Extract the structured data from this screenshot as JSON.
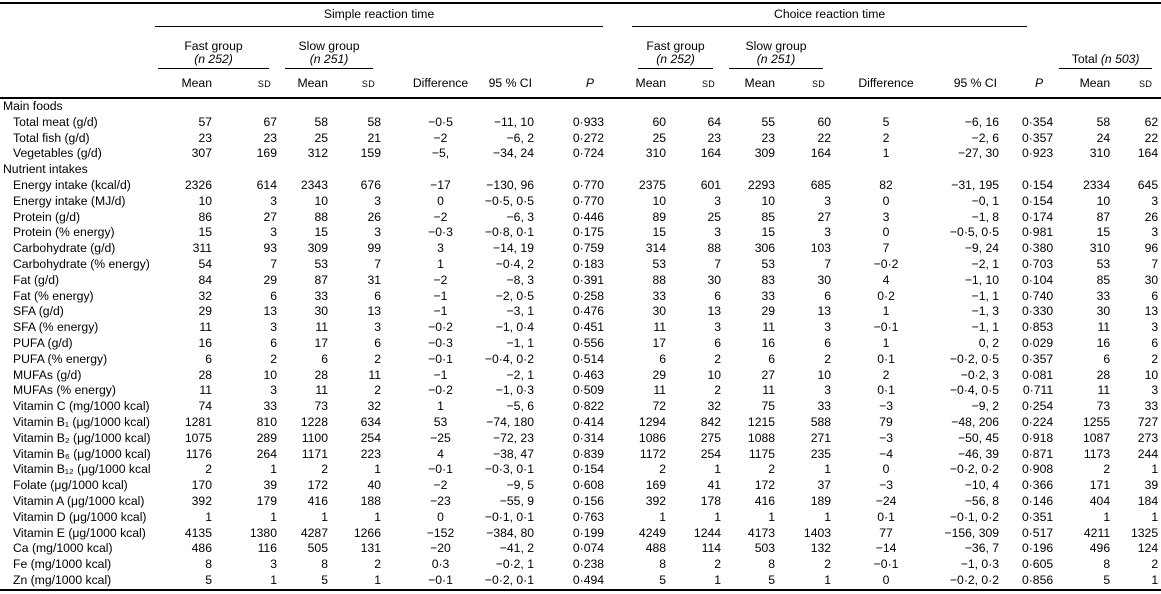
{
  "table": {
    "header": {
      "simple": {
        "title": "Simple reaction time",
        "fast": {
          "label": "Fast group",
          "n": "(n 252)"
        },
        "slow": {
          "label": "Slow group",
          "n": "(n 251)"
        }
      },
      "choice": {
        "title": "Choice reaction time",
        "fast": {
          "label": "Fast group",
          "n": "(n 252)"
        },
        "slow": {
          "label": "Slow group",
          "n": "(n 251)"
        }
      },
      "total": {
        "label": "Total",
        "n": "(n 503)"
      },
      "cols": {
        "mean": "Mean",
        "sd": "sd",
        "difference": "Difference",
        "ci": "95 % CI",
        "p": "P"
      }
    },
    "sections": [
      {
        "title": "Main foods",
        "rows": [
          {
            "label": "Total meat (g/d)",
            "s": [
              "57",
              "67",
              "58",
              "58",
              "−0·5",
              "−11, 10",
              "0·933"
            ],
            "c": [
              "60",
              "64",
              "55",
              "60",
              "5",
              "−6, 16",
              "0·354"
            ],
            "t": [
              "58",
              "62"
            ]
          },
          {
            "label": "Total fish (g/d)",
            "s": [
              "23",
              "23",
              "25",
              "21",
              "−2",
              "−6, 2",
              "0·272"
            ],
            "c": [
              "25",
              "23",
              "23",
              "22",
              "2",
              "−2, 6",
              "0·357"
            ],
            "t": [
              "24",
              "22"
            ]
          },
          {
            "label": "Vegetables (g/d)",
            "s": [
              "307",
              "169",
              "312",
              "159",
              "−5,",
              "−34, 24",
              "0·724"
            ],
            "c": [
              "310",
              "164",
              "309",
              "164",
              "1",
              "−27, 30",
              "0·923"
            ],
            "t": [
              "310",
              "164"
            ]
          }
        ]
      },
      {
        "title": "Nutrient intakes",
        "rows": [
          {
            "label": "Energy intake (kcal/d)",
            "s": [
              "2326",
              "614",
              "2343",
              "676",
              "−17",
              "−130, 96",
              "0·770"
            ],
            "c": [
              "2375",
              "601",
              "2293",
              "685",
              "82",
              "−31, 195",
              "0·154"
            ],
            "t": [
              "2334",
              "645"
            ]
          },
          {
            "label": "Energy intake (MJ/d)",
            "s": [
              "10",
              "3",
              "10",
              "3",
              "0",
              "−0·5, 0·5",
              "0·770"
            ],
            "c": [
              "10",
              "3",
              "10",
              "3",
              "0",
              "−0, 1",
              "0·154"
            ],
            "t": [
              "10",
              "3"
            ]
          },
          {
            "label": "Protein (g/d)",
            "s": [
              "86",
              "27",
              "88",
              "26",
              "−2",
              "−6, 3",
              "0·446"
            ],
            "c": [
              "89",
              "25",
              "85",
              "27",
              "3",
              "−1, 8",
              "0·174"
            ],
            "t": [
              "87",
              "26"
            ]
          },
          {
            "label": "Protein (% energy)",
            "s": [
              "15",
              "3",
              "15",
              "3",
              "−0·3",
              "−0·8, 0·1",
              "0·175"
            ],
            "c": [
              "15",
              "3",
              "15",
              "3",
              "0",
              "−0·5, 0·5",
              "0·981"
            ],
            "t": [
              "15",
              "3"
            ]
          },
          {
            "label": "Carbohydrate (g/d)",
            "s": [
              "311",
              "93",
              "309",
              "99",
              "3",
              "−14, 19",
              "0·759"
            ],
            "c": [
              "314",
              "88",
              "306",
              "103",
              "7",
              "−9, 24",
              "0·380"
            ],
            "t": [
              "310",
              "96"
            ]
          },
          {
            "label": "Carbohydrate (% energy)",
            "s": [
              "54",
              "7",
              "53",
              "7",
              "1",
              "−0·4, 2",
              "0·183"
            ],
            "c": [
              "53",
              "7",
              "53",
              "7",
              "−0·2",
              "−2, 1",
              "0·703"
            ],
            "t": [
              "53",
              "7"
            ]
          },
          {
            "label": "Fat (g/d)",
            "s": [
              "84",
              "29",
              "87",
              "31",
              "−2",
              "−8, 3",
              "0·391"
            ],
            "c": [
              "88",
              "30",
              "83",
              "30",
              "4",
              "−1, 10",
              "0·104"
            ],
            "t": [
              "85",
              "30"
            ]
          },
          {
            "label": "Fat (% energy)",
            "s": [
              "32",
              "6",
              "33",
              "6",
              "−1",
              "−2, 0·5",
              "0·258"
            ],
            "c": [
              "33",
              "6",
              "33",
              "6",
              "0·2",
              "−1, 1",
              "0·740"
            ],
            "t": [
              "33",
              "6"
            ]
          },
          {
            "label": "SFA (g/d)",
            "s": [
              "29",
              "13",
              "30",
              "13",
              "−1",
              "−3, 1",
              "0·476"
            ],
            "c": [
              "30",
              "13",
              "29",
              "13",
              "1",
              "−1, 3",
              "0·330"
            ],
            "t": [
              "30",
              "13"
            ]
          },
          {
            "label": "SFA (% energy)",
            "s": [
              "11",
              "3",
              "11",
              "3",
              "−0·2",
              "−1, 0·4",
              "0·451"
            ],
            "c": [
              "11",
              "3",
              "11",
              "3",
              "−0·1",
              "−1, 1",
              "0·853"
            ],
            "t": [
              "11",
              "3"
            ]
          },
          {
            "label": "PUFA (g/d)",
            "s": [
              "16",
              "6",
              "17",
              "6",
              "−0·3",
              "−1, 1",
              "0·556"
            ],
            "c": [
              "17",
              "6",
              "16",
              "6",
              "1",
              "0, 2",
              "0·029"
            ],
            "t": [
              "16",
              "6"
            ]
          },
          {
            "label": "PUFA (% energy)",
            "s": [
              "6",
              "2",
              "6",
              "2",
              "−0·1",
              "−0·4, 0·2",
              "0·514"
            ],
            "c": [
              "6",
              "2",
              "6",
              "2",
              "0·1",
              "−0·2, 0·5",
              "0·357"
            ],
            "t": [
              "6",
              "2"
            ]
          },
          {
            "label": "MUFAs (g/d)",
            "s": [
              "28",
              "10",
              "28",
              "11",
              "−1",
              "−2, 1",
              "0·463"
            ],
            "c": [
              "29",
              "10",
              "27",
              "10",
              "2",
              "−0·2, 3",
              "0·081"
            ],
            "t": [
              "28",
              "10"
            ]
          },
          {
            "label": "MUFAs (% energy)",
            "s": [
              "11",
              "3",
              "11",
              "2",
              "−0·2",
              "−1, 0·3",
              "0·509"
            ],
            "c": [
              "11",
              "2",
              "11",
              "3",
              "0·1",
              "−0·4, 0·5",
              "0·711"
            ],
            "t": [
              "11",
              "3"
            ]
          },
          {
            "label": "Vitamin C (mg/1000 kcal)",
            "s": [
              "74",
              "33",
              "73",
              "32",
              "1",
              "−5, 6",
              "0·822"
            ],
            "c": [
              "72",
              "32",
              "75",
              "33",
              "−3",
              "−9, 2",
              "0·254"
            ],
            "t": [
              "73",
              "33"
            ]
          },
          {
            "label": "Vitamin B₁ (μg/1000 kcal)",
            "s": [
              "1281",
              "810",
              "1228",
              "634",
              "53",
              "−74, 180",
              "0·414"
            ],
            "c": [
              "1294",
              "842",
              "1215",
              "588",
              "79",
              "−48, 206",
              "0·224"
            ],
            "t": [
              "1255",
              "727"
            ]
          },
          {
            "label": "Vitamin B₂ (μg/1000 kcal)",
            "s": [
              "1075",
              "289",
              "1100",
              "254",
              "−25",
              "−72, 23",
              "0·314"
            ],
            "c": [
              "1086",
              "275",
              "1088",
              "271",
              "−3",
              "−50, 45",
              "0·918"
            ],
            "t": [
              "1087",
              "273"
            ]
          },
          {
            "label": "Vitamin B₆ (μg/1000 kcal)",
            "s": [
              "1176",
              "264",
              "1171",
              "223",
              "4",
              "−38, 47",
              "0·839"
            ],
            "c": [
              "1172",
              "254",
              "1175",
              "235",
              "−4",
              "−46, 39",
              "0·871"
            ],
            "t": [
              "1173",
              "244"
            ]
          },
          {
            "label": "Vitamin B₁₂ (μg/1000 kcal)",
            "s": [
              "2",
              "1",
              "2",
              "1",
              "−0·1",
              "−0·3, 0·1",
              "0·154"
            ],
            "c": [
              "2",
              "1",
              "2",
              "1",
              "0",
              "−0·2, 0·2",
              "0·908"
            ],
            "t": [
              "2",
              "1"
            ]
          },
          {
            "label": "Folate (μg/1000 kcal)",
            "s": [
              "170",
              "39",
              "172",
              "40",
              "−2",
              "−9, 5",
              "0·608"
            ],
            "c": [
              "169",
              "41",
              "172",
              "37",
              "−3",
              "−10, 4",
              "0·366"
            ],
            "t": [
              "171",
              "39"
            ]
          },
          {
            "label": "Vitamin A (μg/1000 kcal)",
            "s": [
              "392",
              "179",
              "416",
              "188",
              "−23",
              "−55, 9",
              "0·156"
            ],
            "c": [
              "392",
              "178",
              "416",
              "189",
              "−24",
              "−56, 8",
              "0·146"
            ],
            "t": [
              "404",
              "184"
            ]
          },
          {
            "label": "Vitamin D (μg/1000 kcal)",
            "s": [
              "1",
              "1",
              "1",
              "1",
              "0",
              "−0·1, 0·1",
              "0·763"
            ],
            "c": [
              "1",
              "1",
              "1",
              "1",
              "0·1",
              "−0·1, 0·2",
              "0·351"
            ],
            "t": [
              "1",
              "1"
            ]
          },
          {
            "label": "Vitamin E (μg/1000 kcal)",
            "s": [
              "4135",
              "1380",
              "4287",
              "1266",
              "−152",
              "−384, 80",
              "0·199"
            ],
            "c": [
              "4249",
              "1244",
              "4173",
              "1403",
              "77",
              "−156, 309",
              "0·517"
            ],
            "t": [
              "4211",
              "1325"
            ]
          },
          {
            "label": "Ca (mg/1000 kcal)",
            "s": [
              "486",
              "116",
              "505",
              "131",
              "−20",
              "−41, 2",
              "0·074"
            ],
            "c": [
              "488",
              "114",
              "503",
              "132",
              "−14",
              "−36, 7",
              "0·196"
            ],
            "t": [
              "496",
              "124"
            ]
          },
          {
            "label": "Fe (mg/1000 kcal)",
            "s": [
              "8",
              "3",
              "8",
              "2",
              "0·3",
              "−0·2, 1",
              "0·238"
            ],
            "c": [
              "8",
              "2",
              "8",
              "2",
              "−0·1",
              "−1, 0·3",
              "0·605"
            ],
            "t": [
              "8",
              "2"
            ]
          },
          {
            "label": "Zn (mg/1000 kcal)",
            "s": [
              "5",
              "1",
              "5",
              "1",
              "−0·1",
              "−0·2, 0·1",
              "0·494"
            ],
            "c": [
              "5",
              "1",
              "5",
              "1",
              "0",
              "−0·2, 0·2",
              "0·856"
            ],
            "t": [
              "5",
              "1"
            ]
          }
        ]
      }
    ]
  }
}
